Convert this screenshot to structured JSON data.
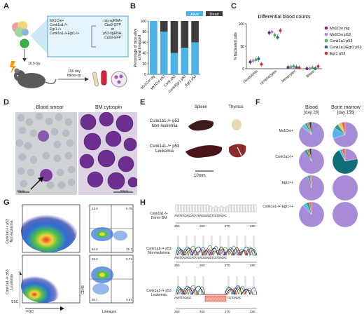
{
  "panels": {
    "a": "A",
    "b": "B",
    "c": "C",
    "d": "D",
    "e": "E",
    "f": "F",
    "g": "G",
    "h": "H"
  },
  "panel_a": {
    "genotypes": [
      "Mx1Cre+",
      "Csnk1a1-/+",
      "Egr1-/+",
      "Csnk1a1-/+Egr1-/+"
    ],
    "constructs": [
      "ntg-sgRNA-",
      "Cas9-GFP",
      "or",
      "p53-sgRNA-",
      "Cas9-GFP"
    ],
    "dose": "10.5 Gy",
    "followup": [
      "156 day",
      "follow-up"
    ]
  },
  "panel_b": {
    "chart_data": {
      "type": "bar",
      "stacked": true,
      "categories": [
        "Mx1Cre ntg",
        "Mx1Cre p53",
        "Csnk p53",
        "Csnk/Egr1 p53",
        "Egr1 p53"
      ],
      "series": [
        {
          "name": "Alive",
          "values": [
            100,
            80,
            40,
            50,
            60
          ],
          "color": "#4db3e6"
        },
        {
          "name": "Dead",
          "values": [
            0,
            20,
            60,
            50,
            40
          ],
          "color": "#3d3d3d"
        }
      ],
      "ylabel": "Percentage of mice alive at final timepoint",
      "ylim": [
        0,
        100
      ],
      "yticks": [
        0,
        20,
        40,
        60,
        80,
        100
      ],
      "legend": "top-right"
    }
  },
  "panel_c": {
    "chart_data": {
      "type": "scatter",
      "title": "Differential blood counts",
      "ylabel": "% Nucleated cells",
      "ylim": [
        0,
        100
      ],
      "yticks": [
        0,
        50,
        100
      ],
      "categories": [
        "Neutrophils",
        "Lymphocytes",
        "Monocytes",
        "Blasts"
      ],
      "series": [
        {
          "name": "Mx1Cre ntg",
          "color": "#6a2a6e",
          "values": [
            15,
            80,
            3,
            0
          ]
        },
        {
          "name": "Mx1Cre p53",
          "color": "#a98ad0",
          "values": [
            18,
            82,
            4,
            0
          ]
        },
        {
          "name": "Csnk1a1 p53",
          "color": "#4caf50",
          "values": [
            20,
            75,
            5,
            2
          ]
        },
        {
          "name": "Csnk1a1/Egr1 p53",
          "color": "#1f6f6f",
          "values": [
            22,
            70,
            3,
            0
          ]
        },
        {
          "name": "Egr1 p53",
          "color": "#d32f2f",
          "values": [
            10,
            85,
            2,
            5
          ]
        }
      ],
      "legend": "top-right"
    }
  },
  "panel_d": {
    "left_title": "Blood smear",
    "right_title": "BM cytospin",
    "left_scale": "10um",
    "right_scale": "50um"
  },
  "panel_e": {
    "col1": "Spleen",
    "col2": "Thymus",
    "row1": [
      "Csnk1a1-/+ p53",
      "Non-leukemia"
    ],
    "row2": [
      "Csnk1a1-/+ p53",
      "Leukemia"
    ],
    "scale": "10mm"
  },
  "panel_f": {
    "col1": [
      "Blood",
      "[day 28]"
    ],
    "col2": [
      "Bone marrow",
      "[day 156]"
    ],
    "rows": [
      "Mx1Cre+",
      "Csnk1a1-/+",
      "Egr1-/+",
      "Csnk1a1-/+ Egr1-/+"
    ]
  },
  "panel_g": {
    "row1": [
      "Csnk1a1-/+ p53",
      "Non-leukemia"
    ],
    "row2": [
      "Csnk1a1-/+ p53",
      "Leukemia"
    ],
    "xlabel_left": "FSC",
    "ylabel_left": "SSC",
    "xlabel_right": "Lineages",
    "ylabel_right": "CD48",
    "quad_top": [
      "13.0",
      "6.78",
      "64.6",
      "15.7"
    ],
    "quad_bottom": [
      "65.2",
      "0.71",
      "30.1",
      "3.97"
    ]
  },
  "panel_h": {
    "rows": [
      {
        "label": [
          "Csnk1a1-/+",
          "Donor BM"
        ],
        "seq": "AAGTCACAGCACATGACGGAGGTCGTGAGAC"
      },
      {
        "label": [
          "Csnk1a1-/+ p53",
          "Non-leukemia"
        ],
        "seq": "AAGTCACAGCACATGACGGAGGTCGTGAGAC"
      },
      {
        "label": [
          "Csnk1a1-/+ p53",
          "Leukemia"
        ],
        "seq": "AAGTCACAGC",
        "seq2": "CGTGAGAC"
      }
    ],
    "ticks": [
      "250",
      "260",
      "270",
      "280"
    ]
  }
}
